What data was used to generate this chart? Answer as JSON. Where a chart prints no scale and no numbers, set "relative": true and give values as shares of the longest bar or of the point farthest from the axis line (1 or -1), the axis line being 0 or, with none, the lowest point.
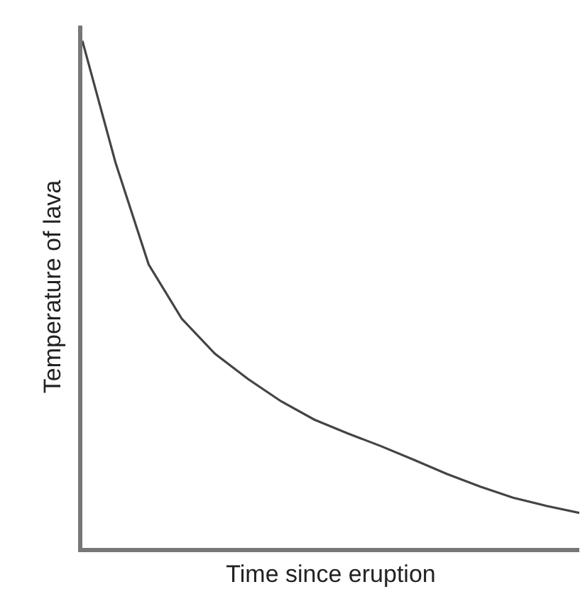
{
  "chart_data": {
    "type": "line",
    "relative": true,
    "xlabel": "Time since eruption",
    "ylabel": "Temperature of lava",
    "categories": [
      null,
      null,
      null,
      null,
      null,
      null,
      null,
      null,
      null,
      null,
      null,
      null,
      null,
      null,
      null,
      null
    ],
    "series": [
      {
        "color": "#444444",
        "values": [
          1.0,
          0.76,
          0.559,
          0.452,
          0.383,
          0.333,
          0.289,
          0.253,
          0.226,
          0.201,
          0.174,
          0.146,
          0.121,
          0.099,
          0.083,
          0.069
        ]
      }
    ],
    "marker": "none",
    "line_style": "solid"
  }
}
